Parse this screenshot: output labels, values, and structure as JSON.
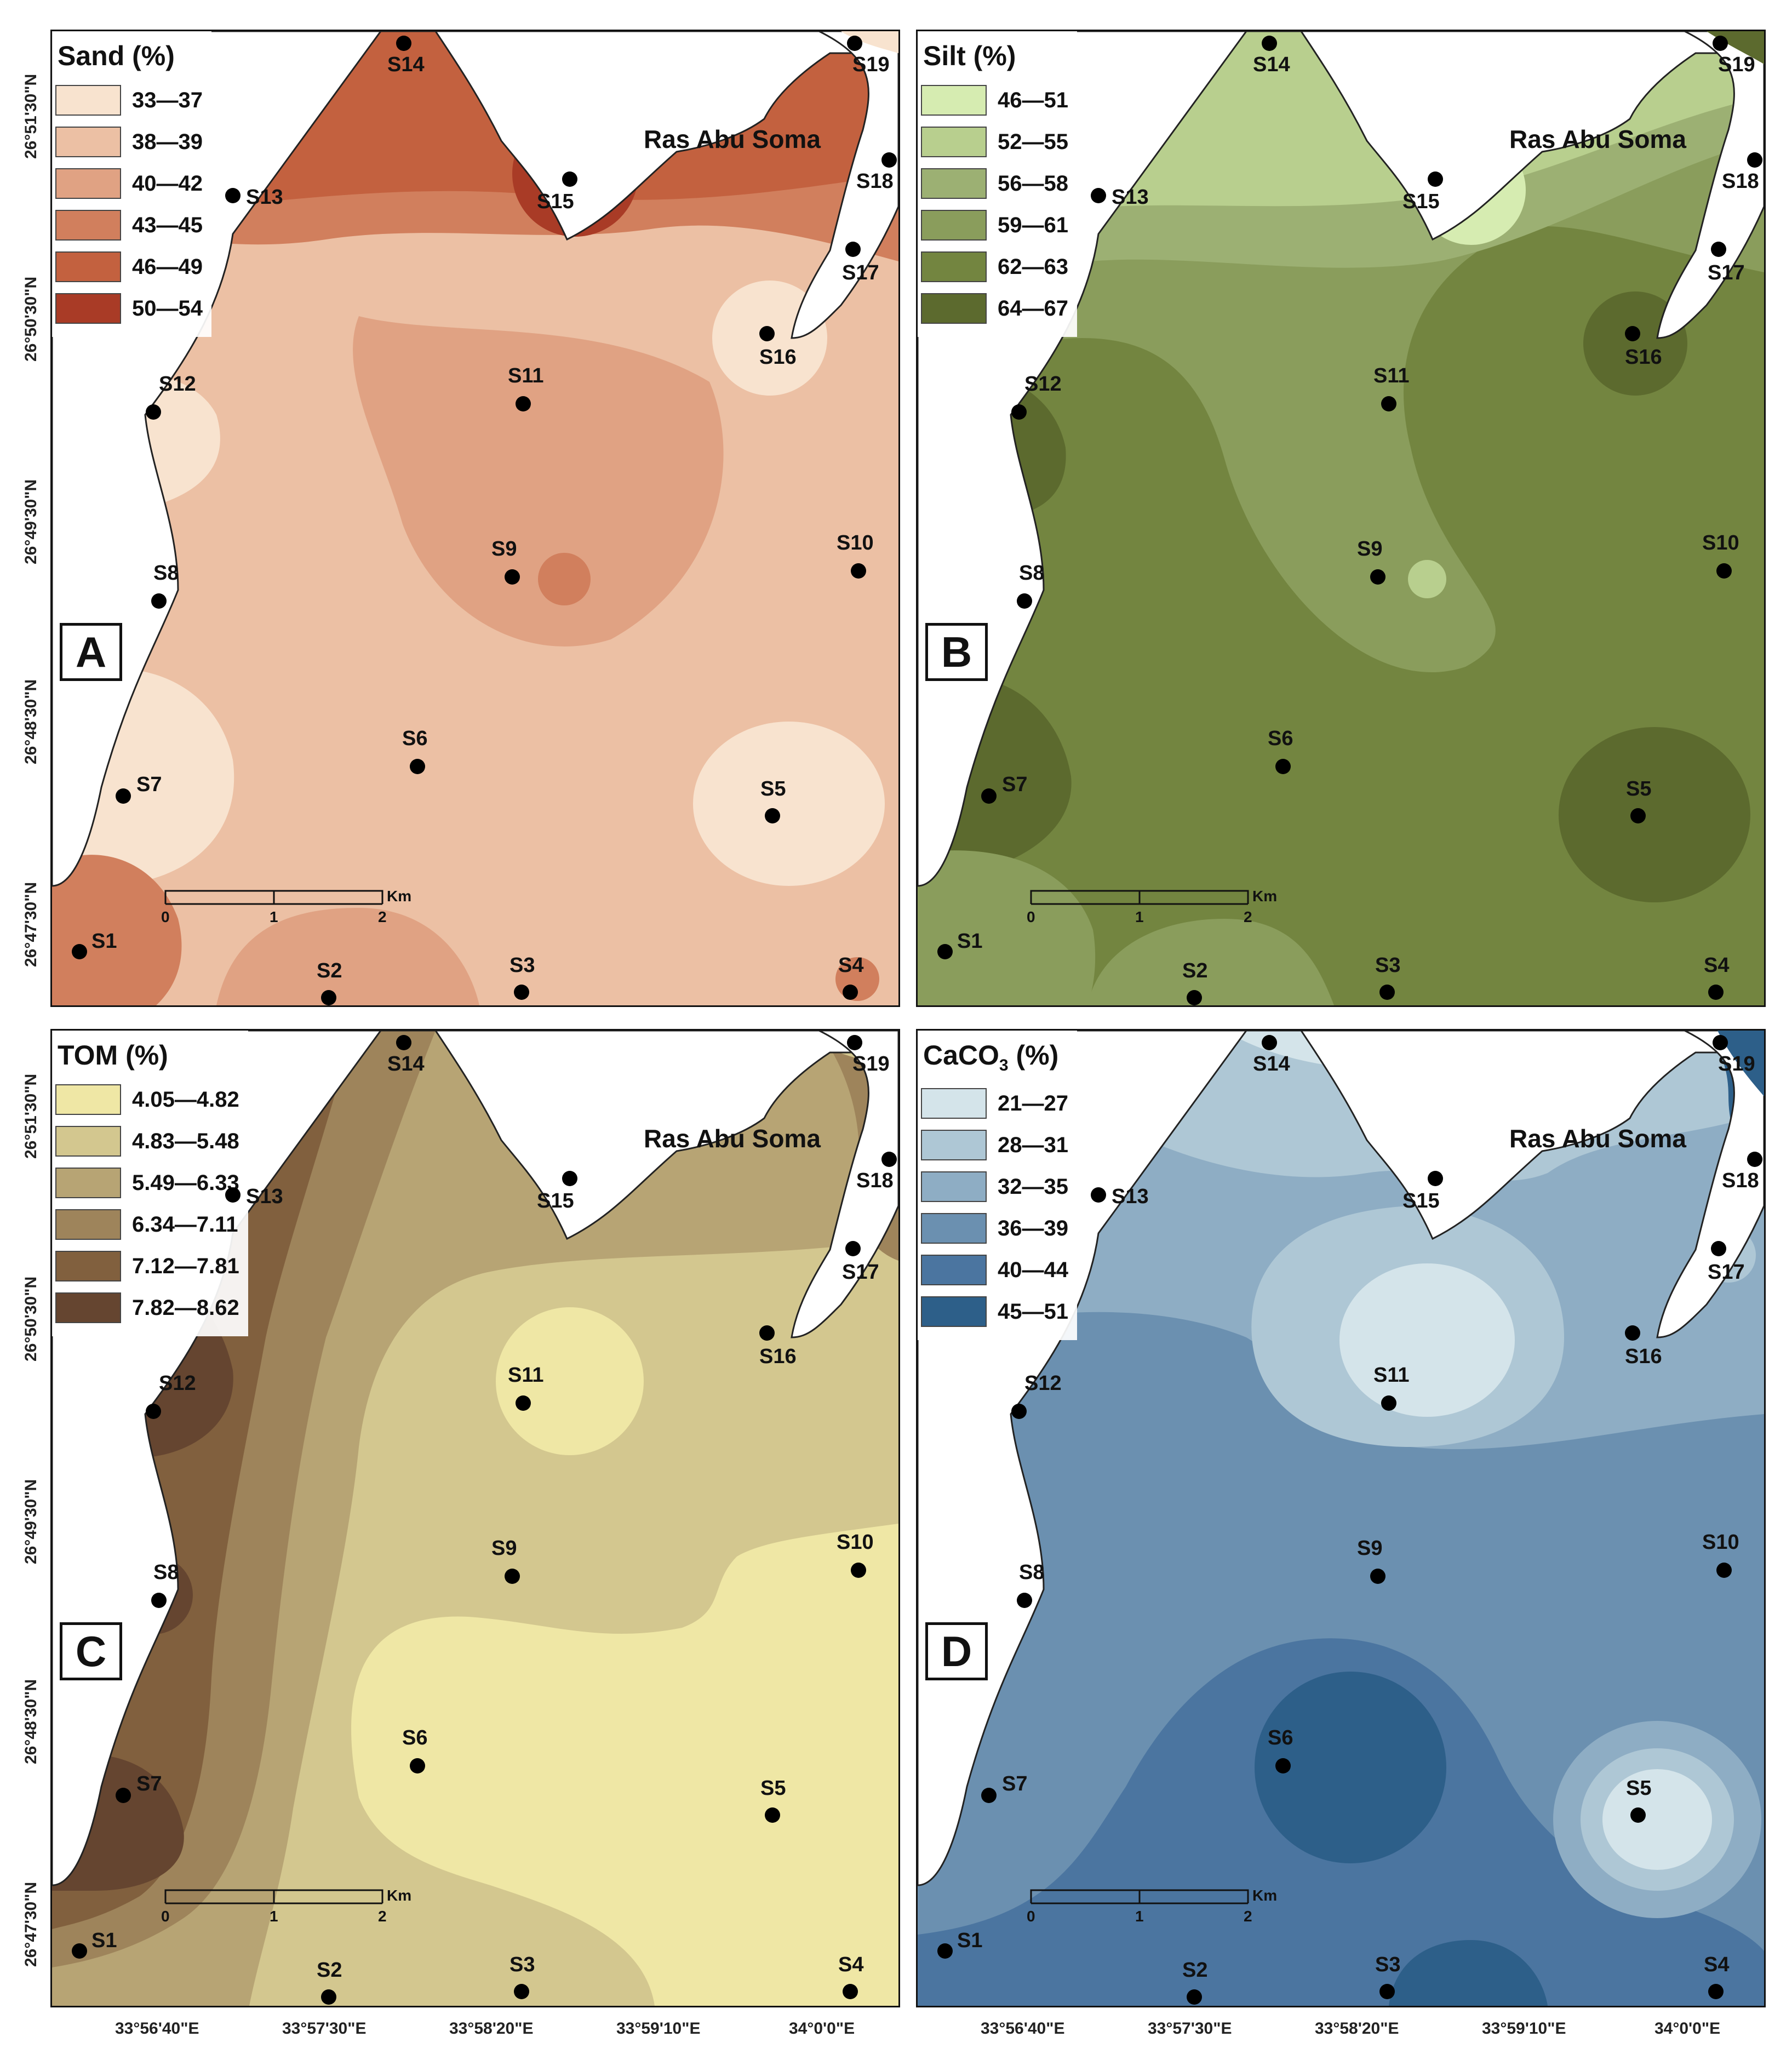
{
  "place_name": "Ras Abu Soma",
  "scale": {
    "zero": "0",
    "one": "1",
    "two": "2",
    "unit": "Km"
  },
  "x_ticks": [
    "33°56'40\"E",
    "33°57'30\"E",
    "33°58'20\"E",
    "33°59'10\"E",
    "34°0'0\"E"
  ],
  "y_ticks": [
    "26°51'30\"N",
    "26°50'30\"N",
    "26°49'30\"N",
    "26°48'30\"N",
    "26°47'30\"N"
  ],
  "stations": [
    "S1",
    "S2",
    "S3",
    "S4",
    "S5",
    "S6",
    "S7",
    "S8",
    "S9",
    "S10",
    "S11",
    "S12",
    "S13",
    "S14",
    "S15",
    "S16",
    "S17",
    "S18",
    "S19"
  ],
  "panels": [
    {
      "letter": "A",
      "title": "Sand (%)",
      "legend": [
        {
          "label": "33—37",
          "color": "#f8e3cf"
        },
        {
          "label": "38—39",
          "color": "#ecc0a4"
        },
        {
          "label": "40—42",
          "color": "#e0a283"
        },
        {
          "label": "43—45",
          "color": "#d17f5d"
        },
        {
          "label": "46—49",
          "color": "#c3613f"
        },
        {
          "label": "50—54",
          "color": "#a93b26"
        }
      ]
    },
    {
      "letter": "B",
      "title": "Silt (%)",
      "legend": [
        {
          "label": "46—51",
          "color": "#d6ecb1"
        },
        {
          "label": "52—55",
          "color": "#b8cf8e"
        },
        {
          "label": "56—58",
          "color": "#9cb073"
        },
        {
          "label": "59—61",
          "color": "#8a9d5c"
        },
        {
          "label": "62—63",
          "color": "#738540"
        },
        {
          "label": "64—67",
          "color": "#5c6a2e"
        }
      ]
    },
    {
      "letter": "C",
      "title": "TOM (%)",
      "legend": [
        {
          "label": "4.05—4.82",
          "color": "#efe7a5"
        },
        {
          "label": "4.83—5.48",
          "color": "#d3c78f"
        },
        {
          "label": "5.49—6.33",
          "color": "#b7a474"
        },
        {
          "label": "6.34—7.11",
          "color": "#9e845b"
        },
        {
          "label": "7.12—7.81",
          "color": "#81603e"
        },
        {
          "label": "7.82—8.62",
          "color": "#654530"
        }
      ]
    },
    {
      "letter": "D",
      "title": "CaCO",
      "title_sub": "3",
      "title_tail": " (%)",
      "legend": [
        {
          "label": "21—27",
          "color": "#d4e4ea"
        },
        {
          "label": "28—31",
          "color": "#aec7d5"
        },
        {
          "label": "32—35",
          "color": "#8eadc4"
        },
        {
          "label": "36—39",
          "color": "#6b90b0"
        },
        {
          "label": "40—44",
          "color": "#4b75a0"
        },
        {
          "label": "45—51",
          "color": "#2d5f89"
        }
      ]
    }
  ]
}
